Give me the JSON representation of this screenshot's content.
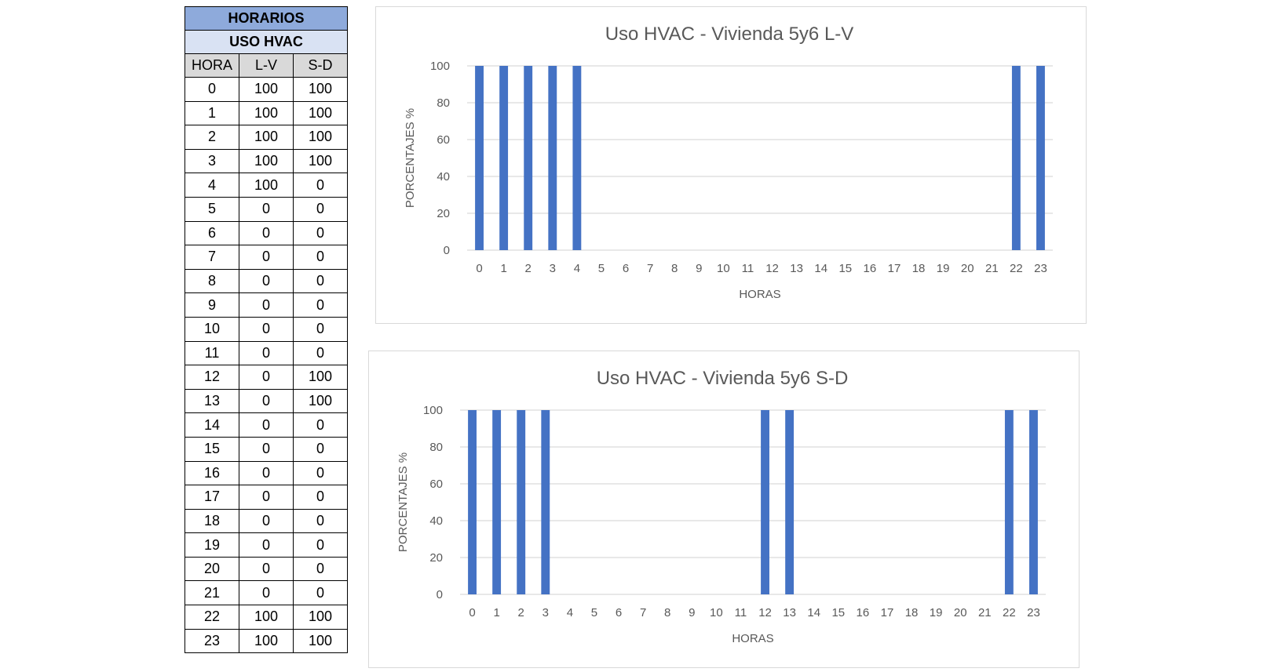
{
  "table": {
    "title": "HORARIOS",
    "subtitle": "USO HVAC",
    "headers": [
      "HORA",
      "L-V",
      "S-D"
    ],
    "rows": [
      [
        "0",
        "100",
        "100"
      ],
      [
        "1",
        "100",
        "100"
      ],
      [
        "2",
        "100",
        "100"
      ],
      [
        "3",
        "100",
        "100"
      ],
      [
        "4",
        "100",
        "0"
      ],
      [
        "5",
        "0",
        "0"
      ],
      [
        "6",
        "0",
        "0"
      ],
      [
        "7",
        "0",
        "0"
      ],
      [
        "8",
        "0",
        "0"
      ],
      [
        "9",
        "0",
        "0"
      ],
      [
        "10",
        "0",
        "0"
      ],
      [
        "11",
        "0",
        "0"
      ],
      [
        "12",
        "0",
        "100"
      ],
      [
        "13",
        "0",
        "100"
      ],
      [
        "14",
        "0",
        "0"
      ],
      [
        "15",
        "0",
        "0"
      ],
      [
        "16",
        "0",
        "0"
      ],
      [
        "17",
        "0",
        "0"
      ],
      [
        "18",
        "0",
        "0"
      ],
      [
        "19",
        "0",
        "0"
      ],
      [
        "20",
        "0",
        "0"
      ],
      [
        "21",
        "0",
        "0"
      ],
      [
        "22",
        "100",
        "100"
      ],
      [
        "23",
        "100",
        "100"
      ]
    ]
  },
  "colors": {
    "bar": "#4472c4",
    "grid": "#d9d9d9",
    "text": "#595959"
  },
  "chart_data": [
    {
      "type": "bar",
      "title": "Uso HVAC - Vivienda 5y6 L-V",
      "xlabel": "HORAS",
      "ylabel": "PORCENTAJES %",
      "categories": [
        "0",
        "1",
        "2",
        "3",
        "4",
        "5",
        "6",
        "7",
        "8",
        "9",
        "10",
        "11",
        "12",
        "13",
        "14",
        "15",
        "16",
        "17",
        "18",
        "19",
        "20",
        "21",
        "22",
        "23"
      ],
      "values": [
        100,
        100,
        100,
        100,
        100,
        0,
        0,
        0,
        0,
        0,
        0,
        0,
        0,
        0,
        0,
        0,
        0,
        0,
        0,
        0,
        0,
        0,
        100,
        100
      ],
      "ylim": [
        0,
        100
      ],
      "yticks": [
        "0",
        "20",
        "40",
        "60",
        "80",
        "100"
      ],
      "grid": true
    },
    {
      "type": "bar",
      "title": "Uso HVAC - Vivienda 5y6 S-D",
      "xlabel": "HORAS",
      "ylabel": "PORCENTAJES %",
      "categories": [
        "0",
        "1",
        "2",
        "3",
        "4",
        "5",
        "6",
        "7",
        "8",
        "9",
        "10",
        "11",
        "12",
        "13",
        "14",
        "15",
        "16",
        "17",
        "18",
        "19",
        "20",
        "21",
        "22",
        "23"
      ],
      "values": [
        100,
        100,
        100,
        100,
        0,
        0,
        0,
        0,
        0,
        0,
        0,
        0,
        100,
        100,
        0,
        0,
        0,
        0,
        0,
        0,
        0,
        0,
        100,
        100
      ],
      "ylim": [
        0,
        100
      ],
      "yticks": [
        "0",
        "20",
        "40",
        "60",
        "80",
        "100"
      ],
      "grid": true
    }
  ]
}
